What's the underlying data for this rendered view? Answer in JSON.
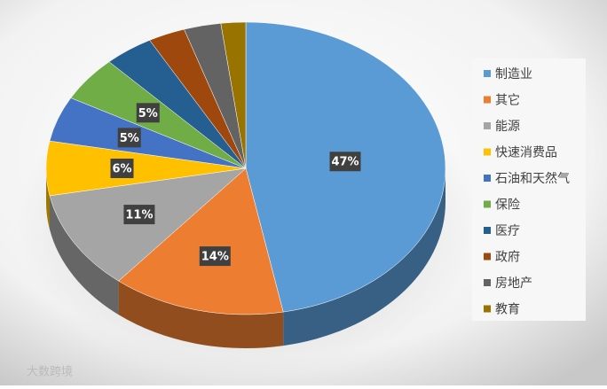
{
  "chart_data": {
    "type": "pie",
    "categories": [
      "制造业",
      "其它",
      "能源",
      "快速消费品",
      "石油和天然气",
      "保险",
      "医疗",
      "政府",
      "房地产",
      "教育"
    ],
    "values": [
      47,
      14,
      11,
      6,
      5,
      5,
      4,
      3,
      3,
      2
    ],
    "value_labels": [
      "47%",
      "14%",
      "11%",
      "6%",
      "5%",
      "5%",
      null,
      null,
      null,
      null
    ],
    "colors": [
      "#5b9bd5",
      "#ed7d31",
      "#a5a5a5",
      "#ffc000",
      "#4472c4",
      "#70ad47",
      "#255e91",
      "#9e480e",
      "#636363",
      "#997300"
    ],
    "legend": "right",
    "watermark": "大数跨境"
  }
}
